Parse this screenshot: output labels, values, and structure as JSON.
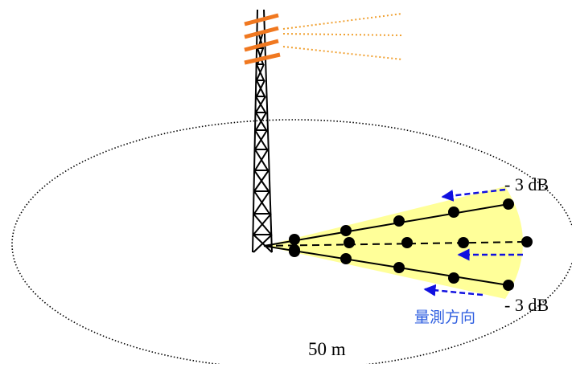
{
  "diagram": {
    "labels": {
      "upper_edge": "- 3 dB",
      "lower_edge": "- 3 dB",
      "distance": "50 m",
      "direction": "量測方向"
    },
    "points_per_radial": {
      "upper": 5,
      "center": 5,
      "lower": 5
    },
    "colors": {
      "tower": "#000000",
      "antenna": "#f07820",
      "signal": "#f0a030",
      "beam": "#ffff99",
      "arrow": "#1010e0",
      "direction_text": "#2f5fe0",
      "points": "#000000"
    }
  }
}
